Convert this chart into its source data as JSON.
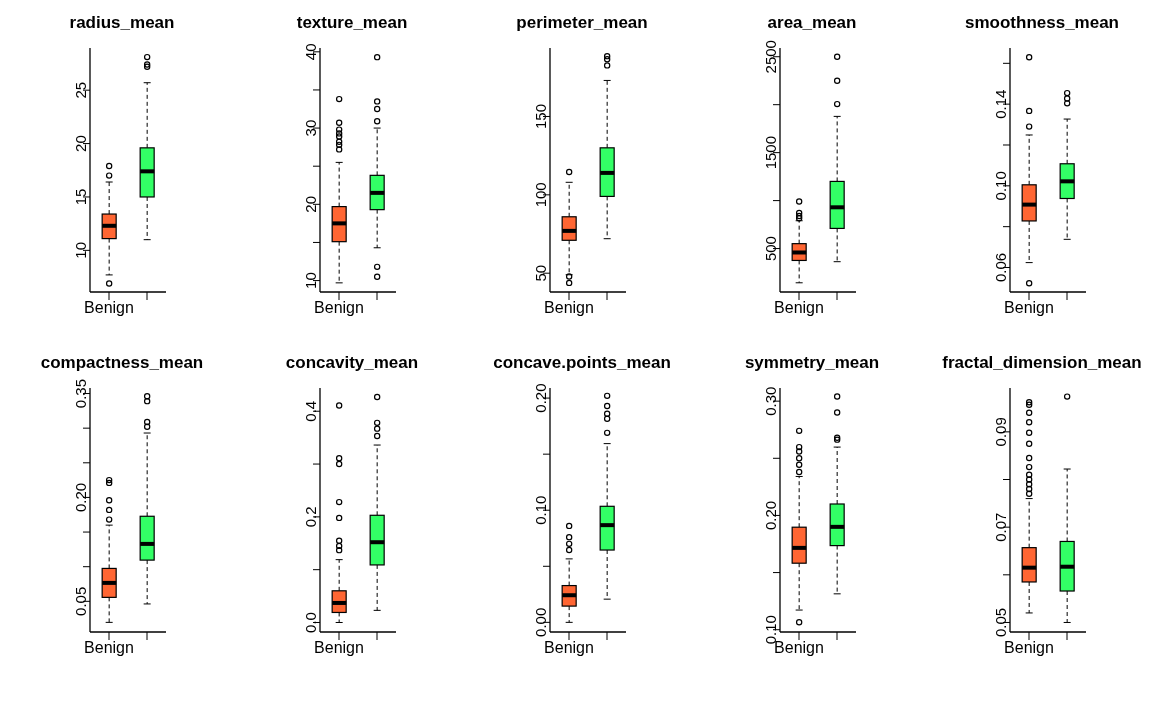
{
  "chart_data": [
    {
      "type": "box",
      "title": "radius_mean",
      "categories": [
        "Benign",
        null
      ],
      "colors": [
        "#ff6633",
        "#33ff66"
      ],
      "ylim": [
        6.1,
        28.95
      ],
      "yticks": [
        10,
        15,
        20,
        25
      ],
      "boxes": [
        {
          "low": 7.7,
          "q1": 11.1,
          "median": 12.3,
          "q3": 13.4,
          "high": 16.4,
          "outliers": [
            6.9,
            17.0,
            17.9
          ]
        },
        {
          "low": 11.0,
          "q1": 15.0,
          "median": 17.4,
          "q3": 19.6,
          "high": 25.7,
          "outliers": [
            27.2,
            27.4,
            28.1
          ]
        }
      ]
    },
    {
      "type": "box",
      "title": "texture_mean",
      "categories": [
        "Benign",
        null
      ],
      "colors": [
        "#ff6633",
        "#33ff66"
      ],
      "ylim": [
        8.5,
        40.5
      ],
      "yticks": [
        10,
        {
          "value": 15,
          "label": null
        },
        20,
        {
          "value": 25,
          "label": null
        },
        30,
        {
          "value": 35,
          "label": null
        },
        40
      ],
      "boxes": [
        {
          "low": 9.7,
          "q1": 15.1,
          "median": 17.5,
          "q3": 19.7,
          "high": 25.5,
          "outliers": [
            27.2,
            27.8,
            28.2,
            28.9,
            29.3,
            29.8,
            30.7,
            33.8
          ]
        },
        {
          "low": 14.3,
          "q1": 19.3,
          "median": 21.5,
          "q3": 23.8,
          "high": 30.0,
          "outliers": [
            10.5,
            11.8,
            30.9,
            32.5,
            33.5,
            39.3
          ]
        }
      ]
    },
    {
      "type": "box",
      "title": "perimeter_mean",
      "categories": [
        "Benign",
        null
      ],
      "colors": [
        "#ff6633",
        "#33ff66"
      ],
      "ylim": [
        38,
        193.7
      ],
      "yticks": [
        50,
        100,
        150
      ],
      "boxes": [
        {
          "low": 49,
          "q1": 71,
          "median": 77,
          "q3": 86,
          "high": 108,
          "outliers": [
            43.8,
            47.9,
            114.6
          ]
        },
        {
          "low": 72,
          "q1": 99,
          "median": 114,
          "q3": 130,
          "high": 173,
          "outliers": [
            182.6,
            186.6,
            188.5
          ]
        }
      ]
    },
    {
      "type": "box",
      "title": "area_mean",
      "categories": [
        "Benign",
        null
      ],
      "colors": [
        "#ff6633",
        "#33ff66"
      ],
      "ylim": [
        47,
        2591
      ],
      "yticks": [
        500,
        {
          "value": 1000,
          "label": null
        },
        1500,
        {
          "value": 2000,
          "label": null
        },
        2500
      ],
      "boxes": [
        {
          "low": 143,
          "q1": 376,
          "median": 459,
          "q3": 551,
          "high": 790,
          "outliers": [
            815,
            840,
            870,
            990
          ]
        },
        {
          "low": 363,
          "q1": 710,
          "median": 930,
          "q3": 1200,
          "high": 1878,
          "outliers": [
            2006,
            2249,
            2500
          ]
        }
      ]
    },
    {
      "type": "box",
      "title": "smoothness_mean",
      "categories": [
        "Benign",
        null
      ],
      "colors": [
        "#ff6633",
        "#33ff66"
      ],
      "ylim": [
        0.048,
        0.1675
      ],
      "yticks": [
        0.06,
        {
          "value": 0.08,
          "label": null
        },
        {
          "value": 0.1,
          "label": "0.10"
        },
        {
          "value": 0.12,
          "label": null
        },
        0.14,
        {
          "value": 0.16,
          "label": null
        }
      ],
      "boxes": [
        {
          "low": 0.0624,
          "q1": 0.0828,
          "median": 0.0908,
          "q3": 0.1005,
          "high": 0.1249,
          "outliers": [
            0.0523,
            0.129,
            0.1367,
            0.163
          ]
        },
        {
          "low": 0.0738,
          "q1": 0.0938,
          "median": 0.1022,
          "q3": 0.1108,
          "high": 0.1327,
          "outliers": [
            0.1404,
            0.1428,
            0.1454
          ]
        }
      ]
    },
    {
      "type": "box",
      "title": "compactness_mean",
      "categories": [
        "Benign",
        null
      ],
      "colors": [
        "#ff6633",
        "#33ff66"
      ],
      "ylim": [
        0.0057,
        0.358
      ],
      "yticks": [
        0.05,
        {
          "value": 0.1,
          "label": null
        },
        {
          "value": 0.15,
          "label": null
        },
        {
          "value": 0.2,
          "label": "0.20"
        },
        {
          "value": 0.25,
          "label": null
        },
        {
          "value": 0.3,
          "label": null
        },
        0.35
      ],
      "boxes": [
        {
          "low": 0.0196,
          "q1": 0.0557,
          "median": 0.0766,
          "q3": 0.0975,
          "high": 0.16,
          "outliers": [
            0.168,
            0.182,
            0.196,
            0.221,
            0.225
          ]
        },
        {
          "low": 0.0462,
          "q1": 0.1095,
          "median": 0.1329,
          "q3": 0.1728,
          "high": 0.293,
          "outliers": [
            0.302,
            0.309,
            0.339,
            0.346
          ]
        }
      ]
    },
    {
      "type": "box",
      "title": "concavity_mean",
      "categories": [
        "Benign",
        null
      ],
      "colors": [
        "#ff6633",
        "#33ff66"
      ],
      "ylim": [
        -0.018,
        0.444
      ],
      "yticks": [
        {
          "value": 0,
          "label": "0.0"
        },
        {
          "value": 0.1,
          "label": null
        },
        0.2,
        {
          "value": 0.3,
          "label": null
        },
        0.4
      ],
      "boxes": [
        {
          "low": 0,
          "q1": 0.019,
          "median": 0.037,
          "q3": 0.06,
          "high": 0.119,
          "outliers": [
            0.137,
            0.145,
            0.155,
            0.198,
            0.228,
            0.3,
            0.311,
            0.411
          ]
        },
        {
          "low": 0.023,
          "q1": 0.109,
          "median": 0.152,
          "q3": 0.203,
          "high": 0.336,
          "outliers": [
            0.353,
            0.367,
            0.378,
            0.427
          ]
        }
      ]
    },
    {
      "type": "box",
      "title": "concave.points_mean",
      "categories": [
        "Benign",
        null
      ],
      "colors": [
        "#ff6633",
        "#33ff66"
      ],
      "ylim": [
        -0.0086,
        0.209
      ],
      "yticks": [
        {
          "value": 0,
          "label": "0.00"
        },
        {
          "value": 0.05,
          "label": null
        },
        {
          "value": 0.1,
          "label": "0.10"
        },
        {
          "value": 0.15,
          "label": null
        },
        {
          "value": 0.2,
          "label": "0.20"
        }
      ],
      "boxes": [
        {
          "low": 0,
          "q1": 0.0145,
          "median": 0.0242,
          "q3": 0.0328,
          "high": 0.0566,
          "outliers": [
            0.0645,
            0.07,
            0.076,
            0.086
          ]
        },
        {
          "low": 0.0207,
          "q1": 0.0645,
          "median": 0.0867,
          "q3": 0.1035,
          "high": 0.1594,
          "outliers": [
            0.169,
            0.1816,
            0.186,
            0.193,
            0.202
          ]
        }
      ]
    },
    {
      "type": "box",
      "title": "symmetry_mean",
      "categories": [
        "Benign",
        null
      ],
      "colors": [
        "#ff6633",
        "#33ff66"
      ],
      "ylim": [
        0.098,
        0.3115
      ],
      "yticks": [
        {
          "value": 0.1,
          "label": "0.10"
        },
        {
          "value": 0.15,
          "label": null
        },
        {
          "value": 0.2,
          "label": "0.20"
        },
        {
          "value": 0.25,
          "label": null
        },
        {
          "value": 0.3,
          "label": "0.30"
        }
      ],
      "boxes": [
        {
          "low": 0.1172,
          "q1": 0.1582,
          "median": 0.1716,
          "q3": 0.1897,
          "high": 0.2341,
          "outliers": [
            0.1065,
            0.238,
            0.2444,
            0.25,
            0.256,
            0.2598,
            0.274
          ]
        },
        {
          "low": 0.1314,
          "q1": 0.1736,
          "median": 0.19,
          "q3": 0.21,
          "high": 0.2598,
          "outliers": [
            0.2663,
            0.268,
            0.29,
            0.304
          ]
        }
      ]
    },
    {
      "type": "box",
      "title": "fractal_dimension_mean",
      "categories": [
        "Benign",
        null
      ],
      "colors": [
        "#ff6633",
        "#33ff66"
      ],
      "ylim": [
        0.048,
        0.0992
      ],
      "yticks": [
        0.05,
        {
          "value": 0.06,
          "label": null
        },
        0.07,
        {
          "value": 0.08,
          "label": null
        },
        0.09
      ],
      "boxes": [
        {
          "low": 0.052,
          "q1": 0.0585,
          "median": 0.0615,
          "q3": 0.0657,
          "high": 0.076,
          "outliers": [
            0.077,
            0.078,
            0.079,
            0.08,
            0.081,
            0.0826,
            0.0845,
            0.0875,
            0.0898,
            0.092,
            0.094,
            0.0957,
            0.0962
          ]
        },
        {
          "low": 0.05,
          "q1": 0.0566,
          "median": 0.0617,
          "q3": 0.067,
          "high": 0.0822,
          "outliers": [
            0.0974
          ]
        }
      ]
    }
  ]
}
